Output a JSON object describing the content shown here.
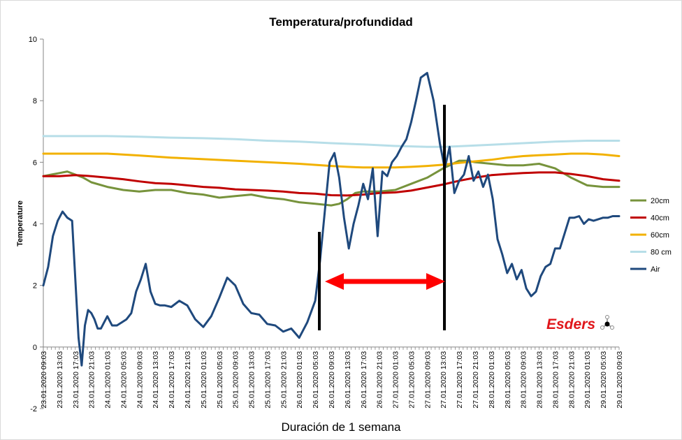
{
  "chart_data": {
    "type": "line",
    "title": "Temperatura/profundidad",
    "ylabel": "Temperature",
    "xlabel": "Duración de 1 semana",
    "ylim": [
      -2,
      10
    ],
    "yticks": [
      -2,
      0,
      2,
      4,
      6,
      8,
      10
    ],
    "grid": false,
    "legend_position": "right",
    "x_tick_labels": [
      "23.01.2020 09:03",
      "23.01.2020 13:03",
      "23.01.2020 17:03",
      "23.01.2020 21:03",
      "24.01.2020 01:03",
      "24.01.2020 05:03",
      "24.01.2020 09:03",
      "24.01.2020 13:03",
      "24.01.2020 17:03",
      "24.01.2020 21:03",
      "25.01.2020 01:03",
      "25.01.2020 05:03",
      "25.01.2020 09:03",
      "25.01.2020 13:03",
      "25.01.2020 17:03",
      "25.01.2020 21:03",
      "26.01.2020 01:03",
      "26.01.2020 05:03",
      "26.01.2020 09:03",
      "26.01.2020 13:03",
      "26.01.2020 17:03",
      "26.01.2020 21:03",
      "27.01.2020 01:03",
      "27.01.2020 05:03",
      "27.01.2020 09:03",
      "27.01.2020 13:03",
      "27.01.2020 17:03",
      "27.01.2020 21:03",
      "28.01.2020 01:03",
      "28.01.2020 05:03",
      "28.01.2020 09:03",
      "28.01.2020 13:03",
      "28.01.2020 17:03",
      "28.01.2020 21:03",
      "29.01.2020 01:03",
      "29.01.2020 05:03",
      "29.01.2020 09:03"
    ],
    "series": [
      {
        "name": "20cm",
        "color": "#77933c",
        "x": [
          0,
          0.5,
          1,
          1.5,
          2,
          2.5,
          3,
          4,
          5,
          6,
          7,
          8,
          9,
          10,
          11,
          12,
          13,
          14,
          15,
          16,
          17,
          18,
          18.5,
          19,
          19.5,
          20,
          21,
          22,
          23,
          24,
          25,
          26,
          26.5,
          27,
          28,
          29,
          30,
          31,
          32,
          33,
          34,
          35,
          36
        ],
        "y": [
          5.55,
          5.6,
          5.65,
          5.7,
          5.6,
          5.5,
          5.35,
          5.2,
          5.1,
          5.05,
          5.1,
          5.1,
          5.0,
          4.95,
          4.85,
          4.9,
          4.95,
          4.85,
          4.8,
          4.7,
          4.65,
          4.6,
          4.65,
          4.8,
          5.0,
          5.05,
          5.05,
          5.1,
          5.3,
          5.5,
          5.8,
          6.05,
          6.05,
          6.0,
          5.95,
          5.9,
          5.9,
          5.95,
          5.8,
          5.5,
          5.25,
          5.2,
          5.2
        ]
      },
      {
        "name": "40cm",
        "color": "#c00000",
        "x": [
          0,
          1,
          2,
          3,
          4,
          5,
          6,
          7,
          8,
          9,
          10,
          11,
          12,
          13,
          14,
          15,
          16,
          17,
          18,
          19,
          20,
          21,
          22,
          23,
          24,
          25,
          26,
          27,
          28,
          29,
          30,
          31,
          32,
          33,
          34,
          35,
          36
        ],
        "y": [
          5.55,
          5.55,
          5.58,
          5.55,
          5.5,
          5.45,
          5.38,
          5.32,
          5.3,
          5.25,
          5.2,
          5.17,
          5.12,
          5.1,
          5.08,
          5.05,
          5.0,
          4.98,
          4.93,
          4.92,
          4.95,
          5.0,
          5.02,
          5.08,
          5.18,
          5.28,
          5.4,
          5.5,
          5.58,
          5.62,
          5.65,
          5.67,
          5.67,
          5.62,
          5.55,
          5.45,
          5.4
        ]
      },
      {
        "name": "60cm",
        "color": "#f2b100",
        "x": [
          0,
          2,
          4,
          6,
          8,
          10,
          12,
          14,
          16,
          18,
          19,
          20,
          21,
          22,
          23,
          24,
          25,
          26,
          27,
          28,
          29,
          30,
          31,
          32,
          33,
          34,
          35,
          36
        ],
        "y": [
          6.28,
          6.28,
          6.28,
          6.22,
          6.15,
          6.1,
          6.05,
          6.0,
          5.95,
          5.88,
          5.85,
          5.83,
          5.83,
          5.83,
          5.85,
          5.88,
          5.92,
          5.98,
          6.03,
          6.08,
          6.15,
          6.2,
          6.23,
          6.25,
          6.28,
          6.28,
          6.25,
          6.2
        ]
      },
      {
        "name": "80 cm",
        "color": "#b7dee8",
        "x": [
          0,
          2,
          4,
          6,
          8,
          10,
          12,
          14,
          16,
          18,
          20,
          22,
          24,
          25,
          26,
          28,
          30,
          32,
          34,
          36
        ],
        "y": [
          6.85,
          6.85,
          6.85,
          6.83,
          6.8,
          6.78,
          6.75,
          6.7,
          6.67,
          6.62,
          6.58,
          6.53,
          6.5,
          6.5,
          6.52,
          6.57,
          6.62,
          6.67,
          6.7,
          6.7
        ]
      },
      {
        "name": "Air",
        "color": "#1f497d",
        "x": [
          0,
          0.3,
          0.6,
          0.9,
          1.2,
          1.5,
          1.8,
          2.0,
          2.2,
          2.4,
          2.6,
          2.8,
          3.0,
          3.2,
          3.4,
          3.6,
          3.8,
          4.0,
          4.3,
          4.6,
          4.9,
          5.2,
          5.5,
          5.8,
          6.1,
          6.4,
          6.7,
          7.0,
          7.3,
          7.6,
          8.0,
          8.5,
          9.0,
          9.5,
          10.0,
          10.5,
          11.0,
          11.5,
          12.0,
          12.5,
          13.0,
          13.5,
          14.0,
          14.5,
          15.0,
          15.5,
          16.0,
          16.5,
          17.0,
          17.3,
          17.6,
          17.9,
          18.2,
          18.5,
          18.8,
          19.1,
          19.4,
          19.7,
          20.0,
          20.3,
          20.6,
          20.9,
          21.2,
          21.5,
          21.8,
          22.1,
          22.4,
          22.7,
          23.0,
          23.3,
          23.6,
          24.0,
          24.4,
          24.8,
          25.1,
          25.4,
          25.7,
          26.0,
          26.3,
          26.6,
          26.9,
          27.2,
          27.5,
          27.8,
          28.1,
          28.4,
          28.7,
          29.0,
          29.3,
          29.6,
          29.9,
          30.2,
          30.5,
          30.8,
          31.1,
          31.4,
          31.7,
          32.0,
          32.3,
          32.6,
          32.9,
          33.2,
          33.5,
          33.8,
          34.1,
          34.4,
          34.7,
          35.0,
          35.3,
          35.6,
          36.0
        ],
        "y": [
          2.0,
          2.6,
          3.6,
          4.1,
          4.4,
          4.2,
          4.1,
          2.2,
          0.3,
          -0.6,
          0.7,
          1.2,
          1.1,
          0.9,
          0.6,
          0.6,
          0.8,
          1.0,
          0.7,
          0.7,
          0.8,
          0.9,
          1.1,
          1.8,
          2.2,
          2.7,
          1.8,
          1.4,
          1.35,
          1.35,
          1.3,
          1.5,
          1.35,
          0.9,
          0.65,
          1.0,
          1.6,
          2.25,
          2.0,
          1.4,
          1.1,
          1.05,
          0.75,
          0.7,
          0.5,
          0.6,
          0.3,
          0.8,
          1.5,
          2.8,
          4.4,
          6.0,
          6.3,
          5.5,
          4.2,
          3.2,
          4.0,
          4.6,
          5.3,
          4.8,
          5.8,
          3.6,
          5.7,
          5.55,
          6.0,
          6.2,
          6.5,
          6.75,
          7.3,
          8.0,
          8.75,
          8.9,
          8.0,
          6.6,
          5.8,
          6.5,
          5.0,
          5.4,
          5.6,
          6.2,
          5.4,
          5.7,
          5.2,
          5.6,
          4.8,
          3.5,
          3.0,
          2.4,
          2.7,
          2.2,
          2.5,
          1.9,
          1.65,
          1.8,
          2.3,
          2.6,
          2.7,
          3.2,
          3.2,
          3.7,
          4.2,
          4.2,
          4.25,
          4.0,
          4.15,
          4.1,
          4.15,
          4.2,
          4.2,
          4.25,
          4.25
        ]
      }
    ]
  },
  "logo": {
    "text": "Esders"
  }
}
